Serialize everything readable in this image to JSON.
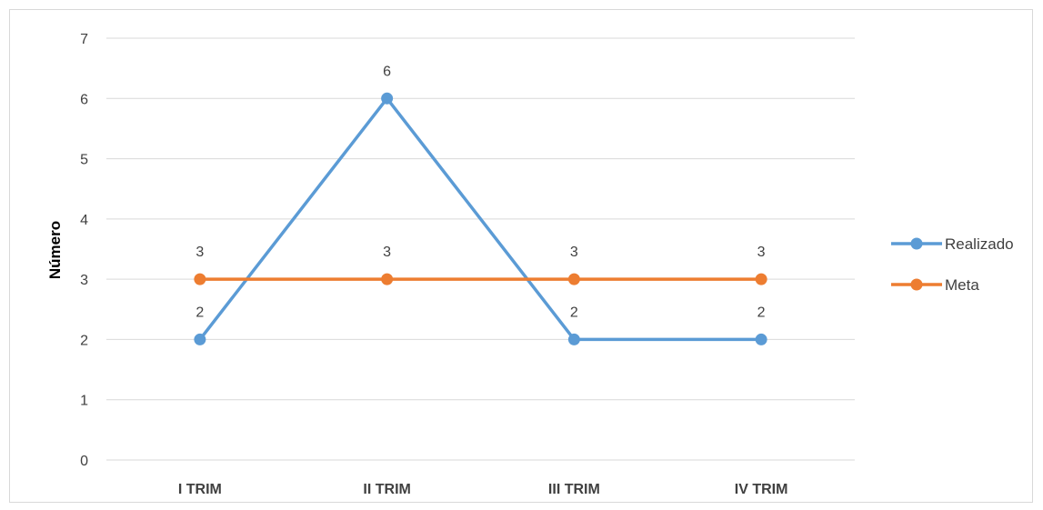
{
  "chart_data": {
    "type": "line",
    "title": "",
    "xlabel": "",
    "ylabel": "Número",
    "categories": [
      "I TRIM",
      "II TRIM",
      "III TRIM",
      "IV TRIM"
    ],
    "ylim": [
      0,
      7
    ],
    "yticks": [
      0,
      1,
      2,
      3,
      4,
      5,
      6,
      7
    ],
    "grid": true,
    "legend_position": "right",
    "data_labels": true,
    "series": [
      {
        "name": "Realizado",
        "values": [
          2,
          6,
          2,
          2
        ],
        "color": "#5b9bd5"
      },
      {
        "name": "Meta",
        "values": [
          3,
          3,
          3,
          3
        ],
        "color": "#ed7d31"
      }
    ]
  }
}
